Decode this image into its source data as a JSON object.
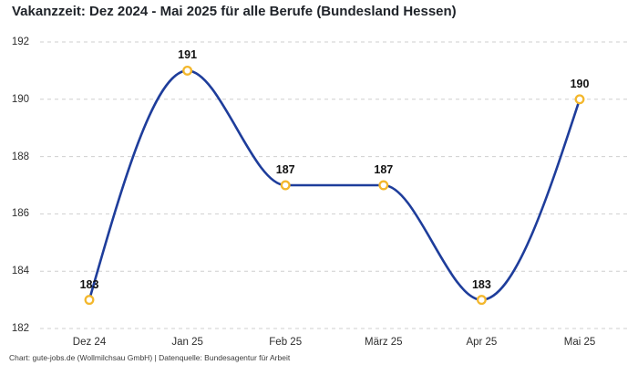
{
  "footer": {
    "text": "Chart: gute-jobs.de (Wollmilchsau GmbH) | Datenquelle: Bundesagentur für Arbeit"
  },
  "chart_data": {
    "type": "line",
    "title": "Vakanzzeit: Dez 2024 - Mai 2025 für alle Berufe (Bundesland Hessen)",
    "categories": [
      "Dez 24",
      "Jan 25",
      "Feb 25",
      "März 25",
      "Apr 25",
      "Mai 25"
    ],
    "values": [
      183,
      191,
      187,
      187,
      183,
      190
    ],
    "data_labels": [
      "183",
      "191",
      "187",
      "187",
      "183",
      "190"
    ],
    "yticks": [
      182,
      184,
      186,
      188,
      190,
      192
    ],
    "ylim": [
      182,
      192
    ],
    "xlabel": "",
    "ylabel": "",
    "grid": "horizontal-dashed",
    "legend": "none",
    "curve": "smooth-spline",
    "colors": {
      "line": "#1e3d9b",
      "marker_stroke": "#f3b72c",
      "marker_fill": "#ffffff",
      "gridline": "#cfcfcf",
      "title_text": "#1f2329",
      "axis_text": "#2e2e2e",
      "background": "#ffffff"
    }
  }
}
